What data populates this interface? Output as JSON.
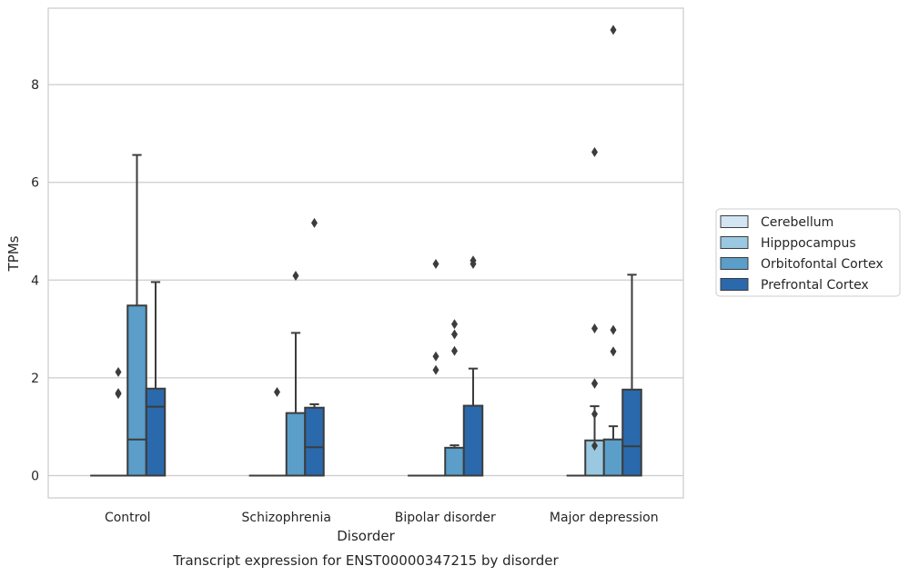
{
  "chart_data": {
    "type": "box",
    "caption": "Transcript expression for ENST00000347215 by disorder",
    "xlabel": "Disorder",
    "ylabel": "TPMs",
    "ylim": [
      -0.38,
      9.65
    ],
    "yticks": [
      0,
      2,
      4,
      6,
      8
    ],
    "categories": [
      "Control",
      "Schizophrenia",
      "Bipolar disorder",
      "Major depression"
    ],
    "grid": "horizontal",
    "legend_position": "right",
    "series": [
      {
        "name": "Cerebellum",
        "color": "#d3e4f3",
        "boxes": [
          {
            "q1": 0,
            "median": 0,
            "q3": 0,
            "whislo": 0,
            "whishi": 0,
            "fliers": []
          },
          {
            "q1": 0,
            "median": 0,
            "q3": 0,
            "whislo": 0,
            "whishi": 0,
            "fliers": []
          },
          {
            "q1": 0,
            "median": 0,
            "q3": 0,
            "whislo": 0,
            "whishi": 0,
            "fliers": []
          },
          {
            "q1": 0,
            "median": 0,
            "q3": 0,
            "whislo": 0,
            "whishi": 0,
            "fliers": []
          }
        ]
      },
      {
        "name": "Hipppocampus",
        "color": "#9ac8e0",
        "boxes": [
          {
            "q1": 0,
            "median": 0,
            "q3": 0,
            "whislo": 0,
            "whishi": 0,
            "fliers": [
              1.69,
              2.12,
              1.67
            ]
          },
          {
            "q1": 0,
            "median": 0,
            "q3": 0,
            "whislo": 0,
            "whishi": 0,
            "fliers": [
              1.71
            ]
          },
          {
            "q1": 0,
            "median": 0,
            "q3": 0,
            "whislo": 0,
            "whishi": 0,
            "fliers": [
              4.33,
              2.44,
              2.16
            ]
          },
          {
            "q1": 0,
            "median": 0,
            "q3": 0.72,
            "whislo": 0,
            "whishi": 1.42,
            "fliers": [
              6.62,
              3.01,
              1.89,
              1.88,
              1.26,
              0.61
            ]
          }
        ]
      },
      {
        "name": "Orbitofontal Cortex",
        "color": "#5a9ec9",
        "boxes": [
          {
            "q1": 0,
            "median": 0.74,
            "q3": 3.48,
            "whislo": 0,
            "whishi": 6.56,
            "fliers": []
          },
          {
            "q1": 0,
            "median": 0,
            "q3": 1.28,
            "whislo": 0,
            "whishi": 2.92,
            "fliers": [
              4.09
            ]
          },
          {
            "q1": 0,
            "median": 0,
            "q3": 0.57,
            "whislo": 0,
            "whishi": 0.62,
            "fliers": [
              3.1,
              2.89,
              2.55
            ]
          },
          {
            "q1": 0,
            "median": 0,
            "q3": 0.74,
            "whislo": 0,
            "whishi": 1.01,
            "fliers": [
              9.12,
              2.98,
              2.54
            ]
          }
        ]
      },
      {
        "name": "Prefrontal Cortex",
        "color": "#2a69ac",
        "boxes": [
          {
            "q1": 0,
            "median": 1.41,
            "q3": 1.78,
            "whislo": 0,
            "whishi": 3.96,
            "fliers": []
          },
          {
            "q1": 0,
            "median": 0.58,
            "q3": 1.39,
            "whislo": 0,
            "whishi": 1.46,
            "fliers": [
              5.17
            ]
          },
          {
            "q1": 0,
            "median": 0,
            "q3": 1.43,
            "whislo": 0,
            "whishi": 2.19,
            "fliers": [
              4.4,
              4.33
            ]
          },
          {
            "q1": 0,
            "median": 0.6,
            "q3": 1.76,
            "whislo": 0,
            "whishi": 4.11,
            "fliers": []
          }
        ]
      }
    ]
  }
}
